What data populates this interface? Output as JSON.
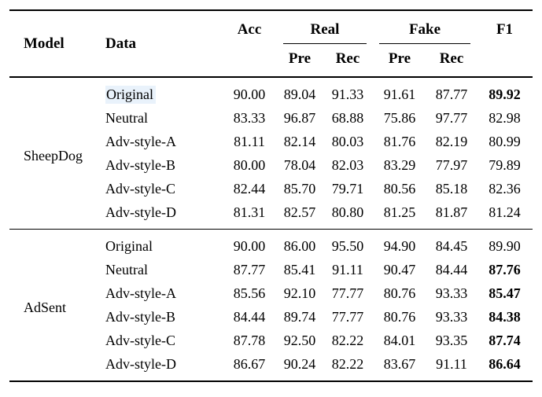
{
  "colors": {
    "rule": "#000000",
    "text": "#000000",
    "highlight": "#e9f2fb"
  },
  "table": {
    "headers": {
      "model": "Model",
      "data": "Data",
      "acc": "Acc",
      "real": "Real",
      "fake": "Fake",
      "f1": "F1",
      "pre": "Pre",
      "rec": "Rec"
    },
    "sections": [
      {
        "model": "SheepDog",
        "rows": [
          {
            "data": "Original",
            "highlight": true,
            "values": [
              "90.00",
              "89.04",
              "91.33",
              "91.61",
              "87.77"
            ],
            "f1": "89.92",
            "f1_bold": true
          },
          {
            "data": "Neutral",
            "highlight": false,
            "values": [
              "83.33",
              "96.87",
              "68.88",
              "75.86",
              "97.77"
            ],
            "f1": "82.98",
            "f1_bold": false
          },
          {
            "data": "Adv-style-A",
            "highlight": false,
            "values": [
              "81.11",
              "82.14",
              "80.03",
              "81.76",
              "82.19"
            ],
            "f1": "80.99",
            "f1_bold": false
          },
          {
            "data": "Adv-style-B",
            "highlight": false,
            "values": [
              "80.00",
              "78.04",
              "82.03",
              "83.29",
              "77.97"
            ],
            "f1": "79.89",
            "f1_bold": false
          },
          {
            "data": "Adv-style-C",
            "highlight": false,
            "values": [
              "82.44",
              "85.70",
              "79.71",
              "80.56",
              "85.18"
            ],
            "f1": "82.36",
            "f1_bold": false
          },
          {
            "data": "Adv-style-D",
            "highlight": false,
            "values": [
              "81.31",
              "82.57",
              "80.80",
              "81.25",
              "81.87"
            ],
            "f1": "81.24",
            "f1_bold": false
          }
        ]
      },
      {
        "model": "AdSent",
        "rows": [
          {
            "data": "Original",
            "highlight": false,
            "values": [
              "90.00",
              "86.00",
              "95.50",
              "94.90",
              "84.45"
            ],
            "f1": "89.90",
            "f1_bold": false
          },
          {
            "data": "Neutral",
            "highlight": false,
            "values": [
              "87.77",
              "85.41",
              "91.11",
              "90.47",
              "84.44"
            ],
            "f1": "87.76",
            "f1_bold": true
          },
          {
            "data": "Adv-style-A",
            "highlight": false,
            "values": [
              "85.56",
              "92.10",
              "77.77",
              "80.76",
              "93.33"
            ],
            "f1": "85.47",
            "f1_bold": true
          },
          {
            "data": "Adv-style-B",
            "highlight": false,
            "values": [
              "84.44",
              "89.74",
              "77.77",
              "80.76",
              "93.33"
            ],
            "f1": "84.38",
            "f1_bold": true
          },
          {
            "data": "Adv-style-C",
            "highlight": false,
            "values": [
              "87.78",
              "92.50",
              "82.22",
              "84.01",
              "93.35"
            ],
            "f1": "87.74",
            "f1_bold": true
          },
          {
            "data": "Adv-style-D",
            "highlight": false,
            "values": [
              "86.67",
              "90.24",
              "82.22",
              "83.67",
              "91.11"
            ],
            "f1": "86.64",
            "f1_bold": true
          }
        ]
      }
    ]
  }
}
